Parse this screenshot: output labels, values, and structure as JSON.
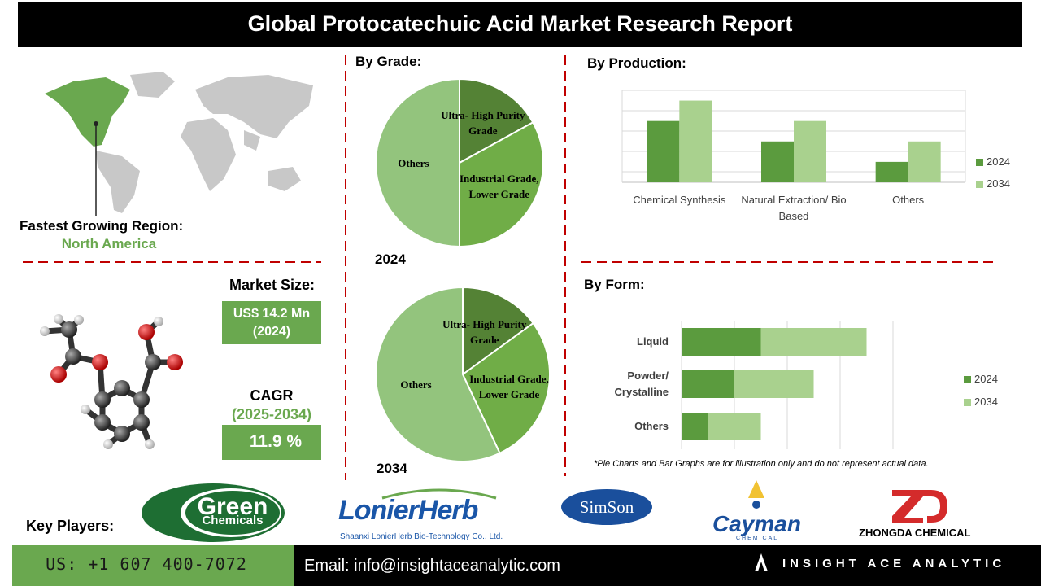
{
  "header": {
    "title": "Global Protocatechuic Acid Market Research Report"
  },
  "region": {
    "label": "Fastest Growing Region:",
    "value": "North America"
  },
  "market_size": {
    "label": "Market Size:",
    "value": "US$ 14.2 Mn (2024)"
  },
  "cagr": {
    "label": "CAGR",
    "period": "(2025-2034)",
    "value": "11.9 %"
  },
  "chart_data": [
    {
      "type": "pie",
      "title": "By Grade:",
      "label": "2024",
      "categories": [
        "Ultra- High Purity Grade",
        "Industrial Grade, Lower Grade",
        "Others"
      ],
      "values": [
        17,
        33,
        50
      ],
      "colors": [
        "#548235",
        "#70ad47",
        "#93c47d"
      ]
    },
    {
      "type": "pie",
      "label": "2034",
      "categories": [
        "Ultra- High Purity Grade",
        "Industrial Grade, Lower Grade",
        "Others"
      ],
      "values": [
        15,
        28,
        57
      ],
      "colors": [
        "#548235",
        "#70ad47",
        "#93c47d"
      ]
    },
    {
      "type": "bar",
      "title": "By Production:",
      "categories": [
        "Chemical Synthesis",
        "Natural Extraction/ Bio Based",
        "Others"
      ],
      "series": [
        {
          "name": "2024",
          "color": "#5b9b3e",
          "values": [
            3,
            2,
            1
          ]
        },
        {
          "name": "2034",
          "color": "#a9d18e",
          "values": [
            4,
            3,
            2
          ]
        }
      ],
      "ylim": [
        0,
        4.5
      ]
    },
    {
      "type": "stacked_hbar",
      "title": "By Form:",
      "categories": [
        "Liquid",
        "Powder/ Crystalline",
        "Others"
      ],
      "series": [
        {
          "name": "2024",
          "color": "#5b9b3e",
          "values": [
            1.5,
            1,
            0.5
          ]
        },
        {
          "name": "2034",
          "color": "#a9d18e",
          "values": [
            2,
            1.5,
            1
          ]
        }
      ],
      "xlim": [
        0,
        4
      ]
    }
  ],
  "note": "*Pie Charts and Bar Graphs are for illustration only and do not represent actual data.",
  "key_players": {
    "label": "Key Players:",
    "logos": [
      {
        "name": "Green",
        "sub": "Chemicals"
      },
      {
        "name": "LonierHerb",
        "sub": "Shaanxi LonierHerb Bio-Technology Co., Ltd."
      },
      {
        "name": "SimSon"
      },
      {
        "name": "Cayman",
        "sub": "CHEMICAL"
      },
      {
        "name": "ZHONGDA CHEMICAL"
      }
    ]
  },
  "footer": {
    "phone": "US: +1 607 400-7072",
    "email": "Email: info@insightaceanalytic.com",
    "brand": "INSIGHT ACE ANALYTIC"
  }
}
